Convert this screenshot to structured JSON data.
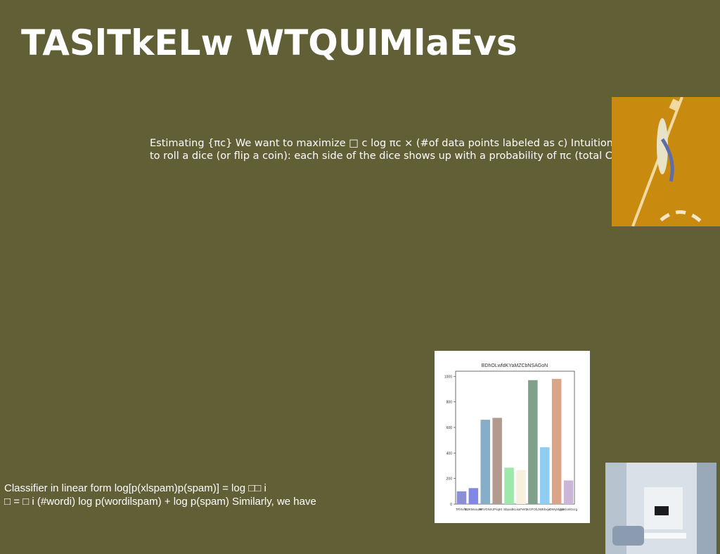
{
  "slide": {
    "title": "TASlTkELw WTQUlMlaEvs",
    "paragraph_1": [
      "Estimating {πc} We want to maximize □ c log πc × (#of data points labeled as c) Intuition •",
      "to roll a dice (or flip a coin): each side of the dice shows up with a probability of πc (total C"
    ],
    "paragraph_2": [
      "Classifier in linear form log[p(xlspam)p(spam)] = log □□ i",
      "□ = □ i (#wordi) log p(wordilspam) + log p(spam) Similarly, we have"
    ]
  },
  "chart_data": {
    "type": "bar",
    "title": "BDhOLwfdKYaMZCbNSAGoN",
    "categories": [
      "TFlXvfEt",
      "EJKMxxuJs",
      "HRVGNX",
      "JPsqKt",
      "SbpodK",
      "LkaFWG",
      "KGFOhJ",
      "WEbxjw",
      "OWyMgjN",
      "ALKlonlGcrg"
    ],
    "values": [
      100,
      125,
      660,
      675,
      285,
      265,
      970,
      445,
      980,
      185
    ],
    "colors": [
      "#8a8fd6",
      "#8088e6",
      "#86aec8",
      "#b49a8e",
      "#9fe8ab",
      "#f7f0dc",
      "#7fa08a",
      "#90cdf2",
      "#dca486",
      "#cbb6d8"
    ],
    "ylim": [
      0,
      1040
    ],
    "yticks": [
      0,
      200,
      400,
      600,
      800,
      1000
    ]
  }
}
